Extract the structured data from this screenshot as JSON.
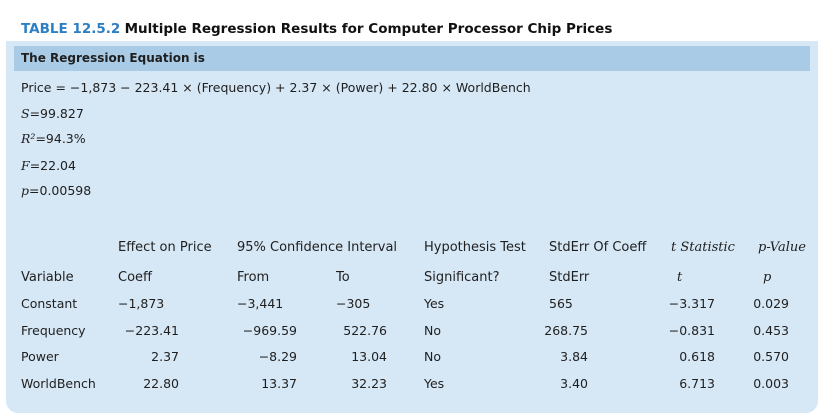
{
  "title": {
    "number": "TABLE 12.5.2",
    "text": "Multiple Regression Results for Computer Processor Chip Prices"
  },
  "equation_header": "The Regression Equation is",
  "equation": "Price = −1,873 − 223.41 × (Frequency) + 2.37 × (Power) + 22.80 × WorldBench",
  "stats": {
    "s_var": "S",
    "s_val": "=99.827",
    "r2_var": "R²",
    "r2_val": "=94.3%",
    "f_var": "F",
    "f_val": "=22.04",
    "p_var": "p",
    "p_val": "=0.00598"
  },
  "table": {
    "group_headers": {
      "effect": "Effect on Price",
      "ci": "95% Confidence Interval",
      "hyp": "Hypothesis Test",
      "stderr": "StdErr Of Coeff",
      "tstat": "t Statistic",
      "pval": "p-Value"
    },
    "sub_headers": {
      "variable": "Variable",
      "coeff": "Coeff",
      "from": "From",
      "to": "To",
      "sig": "Significant?",
      "stderr": "StdErr",
      "t": "t",
      "p": "p"
    },
    "rows": [
      {
        "variable": "Constant",
        "coeff": "−1,873",
        "from": "−3,441",
        "to": "−305",
        "sig": "Yes",
        "stderr": "565",
        "t": "−3.317",
        "p": "0.029"
      },
      {
        "variable": "Frequency",
        "coeff": "−223.41",
        "from": "−969.59",
        "to": "522.76",
        "sig": "No",
        "stderr": "268.75",
        "t": "−0.831",
        "p": "0.453"
      },
      {
        "variable": "Power",
        "coeff": "2.37",
        "from": "−8.29",
        "to": "13.04",
        "sig": "No",
        "stderr": "3.84",
        "t": "0.618",
        "p": "0.570"
      },
      {
        "variable": "WorldBench",
        "coeff": "22.80",
        "from": "13.37",
        "to": "32.23",
        "sig": "Yes",
        "stderr": "3.40",
        "t": "6.713",
        "p": "0.003"
      }
    ]
  }
}
